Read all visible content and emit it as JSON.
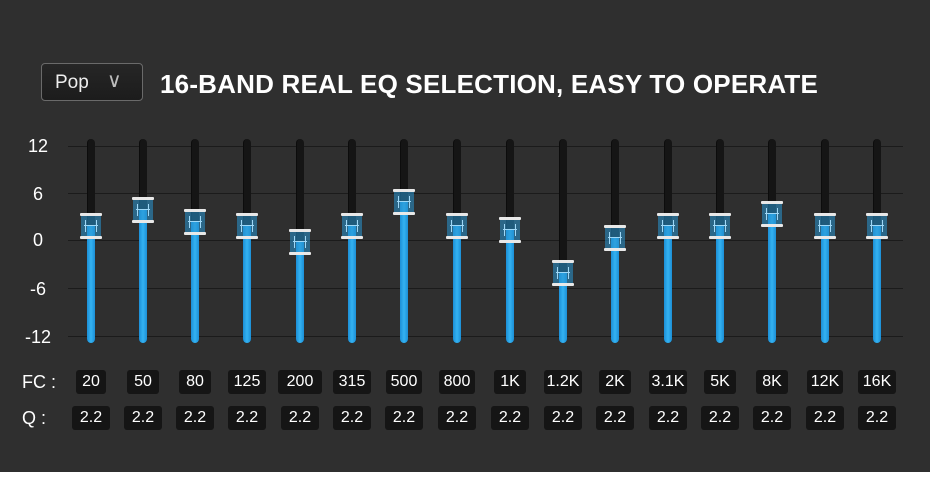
{
  "preset": {
    "value": "Pop",
    "chevron": "∨",
    "icon": "chevron-down-icon"
  },
  "headline": "16-BAND REAL EQ SELECTION, EASY TO OPERATE",
  "scale": {
    "ticks": [
      "12",
      "6",
      "0",
      "-6",
      "-12"
    ],
    "min": -12,
    "max": 12
  },
  "labels": {
    "fc": "FC :",
    "q": "Q :"
  },
  "bands": [
    {
      "fc": "20",
      "q": "2.2",
      "gain": 2
    },
    {
      "fc": "50",
      "q": "2.2",
      "gain": 4
    },
    {
      "fc": "80",
      "q": "2.2",
      "gain": 2.5
    },
    {
      "fc": "125",
      "q": "2.2",
      "gain": 2
    },
    {
      "fc": "200",
      "q": "2.2",
      "gain": 0
    },
    {
      "fc": "315",
      "q": "2.2",
      "gain": 2
    },
    {
      "fc": "500",
      "q": "2.2",
      "gain": 5
    },
    {
      "fc": "800",
      "q": "2.2",
      "gain": 2
    },
    {
      "fc": "1K",
      "q": "2.2",
      "gain": 1.5
    },
    {
      "fc": "1.2K",
      "q": "2.2",
      "gain": -4
    },
    {
      "fc": "2K",
      "q": "2.2",
      "gain": 0.5
    },
    {
      "fc": "3.1K",
      "q": "2.2",
      "gain": 2
    },
    {
      "fc": "5K",
      "q": "2.2",
      "gain": 2
    },
    {
      "fc": "8K",
      "q": "2.2",
      "gain": 3.5
    },
    {
      "fc": "12K",
      "q": "2.2",
      "gain": 2
    },
    {
      "fc": "16K",
      "q": "2.2",
      "gain": 2
    }
  ],
  "colors": {
    "background": "#2f2f2f",
    "fill": "#2aa6ea",
    "track": "#151515",
    "chip": "#151515"
  }
}
